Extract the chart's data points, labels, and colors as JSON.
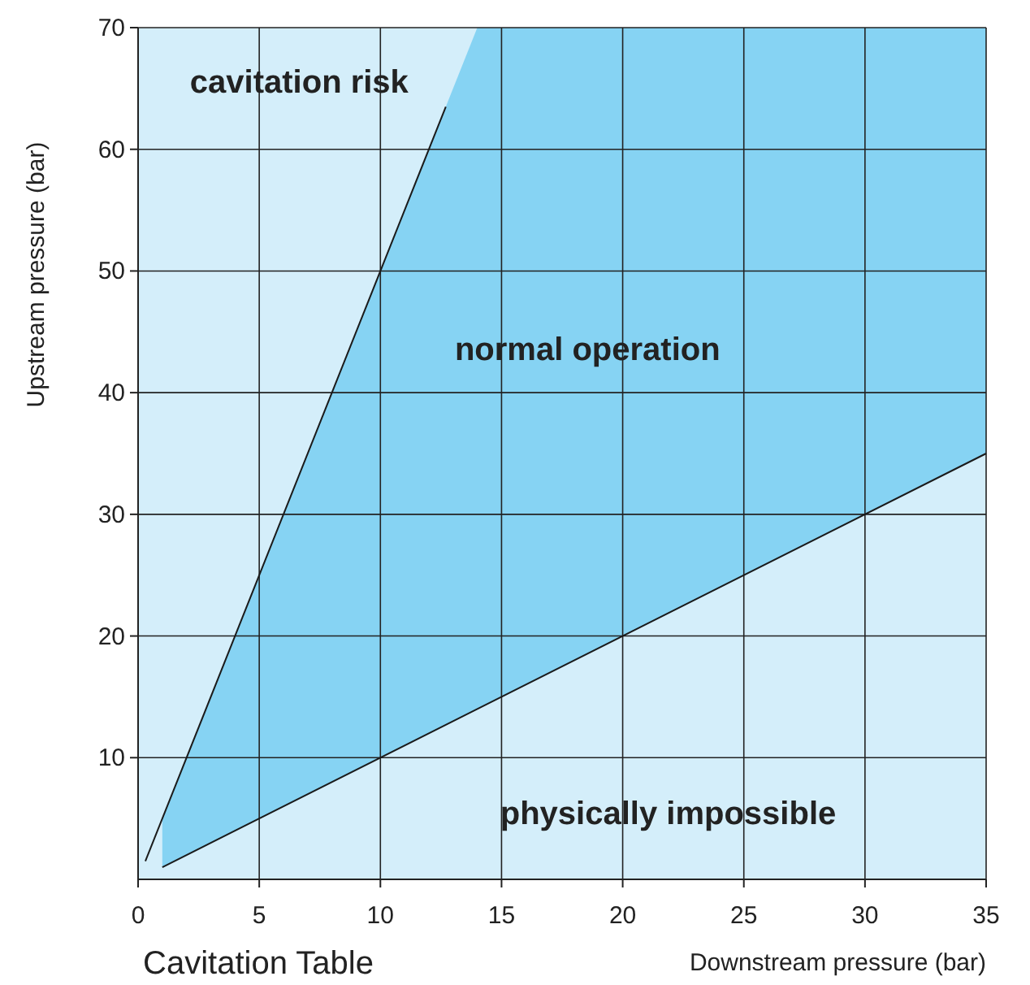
{
  "chart_data": {
    "type": "line",
    "title": "Cavitation Table",
    "xlabel": "Downstream pressure (bar)",
    "ylabel": "Upstream pressure (bar)",
    "xlim": [
      0,
      35
    ],
    "ylim": [
      0,
      70
    ],
    "xticks": [
      0,
      5,
      10,
      15,
      20,
      25,
      30,
      35
    ],
    "yticks": [
      10,
      20,
      30,
      40,
      50,
      60,
      70
    ],
    "grid": true,
    "bands": [
      {
        "axis": "y",
        "from": 0,
        "to": 70,
        "color": "#d4eefa"
      }
    ],
    "series": [
      {
        "color": "#1a1a1a",
        "x": [
          0.3,
          12.7
        ],
        "values": [
          1.5,
          63.5
        ]
      },
      {
        "color": "#1a1a1a",
        "x": [
          1,
          14,
          35
        ],
        "values": [
          1,
          14,
          35
        ],
        "lower": [
          1,
          14,
          35
        ],
        "upper": [
          5,
          70,
          70
        ]
      }
    ],
    "annotations": [
      "cavitation risk",
      "normal operation",
      "physically impossible"
    ]
  }
}
